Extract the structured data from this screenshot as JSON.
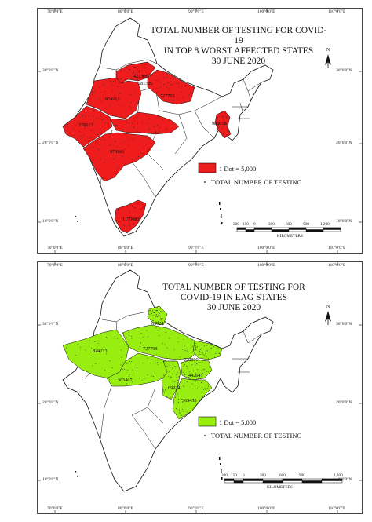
{
  "top_map": {
    "title_lines": [
      "TOTAL NUMBER OF TESTING FOR COVID-19",
      "IN TOP 8 WORST AFFECTED STATES",
      "30 JUNE 2020"
    ],
    "fill_color": "#ee1c1c",
    "legend_box_label": "1 Dot = 5,000",
    "legend_dot_label": "TOTAL NUMBER OF TESTING",
    "state_values": [
      "421300",
      "281502",
      "824213",
      "727793",
      "378613",
      "986058",
      "979161",
      "1170683"
    ],
    "lon_ticks": [
      "70°0'0\"E",
      "80°0'0\"E",
      "90°0'0\"E",
      "100°0'0\"E",
      "110°0'0\"E"
    ],
    "lat_ticks_left": [
      "30°0'0\"N",
      "20°0'0\"N",
      "10°0'0\"N"
    ],
    "lat_ticks_right": [
      "30°0'0\"N",
      "20°0'0\"N",
      "10°0'0\"N"
    ],
    "scale_numbers": [
      "300",
      "150",
      "0",
      "300",
      "600",
      "900",
      "1,200"
    ],
    "scale_unit": "KILOMETERS",
    "north_label": "N"
  },
  "bottom_map": {
    "title_lines": [
      "TOTAL NUMBER OF TESTING FOR",
      "COVID-19 IN EAG STATES",
      "30 JUNE 2020"
    ],
    "fill_color": "#99ee11",
    "legend_box_label": "1 Dot = 5,000",
    "legend_dot_label": "TOTAL NUMBER OF TESTING",
    "state_values": [
      "69024",
      "824213",
      "727793",
      "220890",
      "365467",
      "442641",
      "69024",
      "365433"
    ],
    "lon_ticks": [
      "70°0'0\"E",
      "80°0'0\"E",
      "90°0'0\"E",
      "100°0'0\"E",
      "110°0'0\"E"
    ],
    "lat_ticks_left": [
      "30°0'0\"N",
      "20°0'0\"N",
      "10°0'0\"N"
    ],
    "lat_ticks_right": [
      "30°0'0\"N",
      "20°0'0\"N",
      "10°0'0\"N"
    ],
    "scale_numbers": [
      "300",
      "150",
      "0",
      "300",
      "600",
      "900",
      "1,200"
    ],
    "scale_unit": "KILOMETERS",
    "north_label": "N"
  }
}
